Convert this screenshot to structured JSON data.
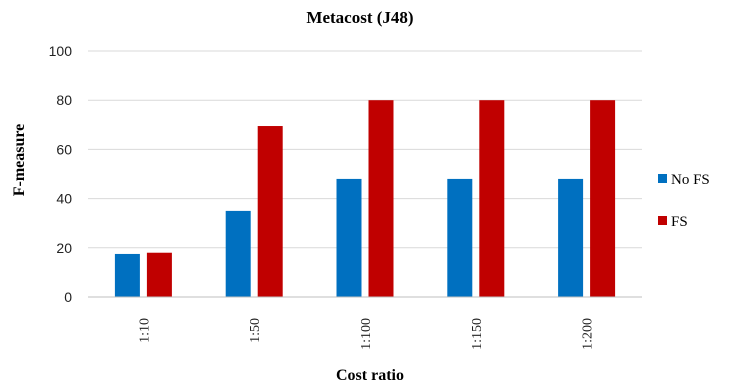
{
  "chart_data": {
    "type": "bar",
    "title": "Metacost (J48)",
    "xlabel": "Cost ratio",
    "ylabel": "F-measure",
    "categories": [
      "1:10",
      "1:50",
      "1:100",
      "1:150",
      "1:200"
    ],
    "series": [
      {
        "name": "No FS",
        "color": "#0070C0",
        "values": [
          17.5,
          35,
          48,
          48,
          48
        ]
      },
      {
        "name": "FS",
        "color": "#C00000",
        "values": [
          18,
          69.5,
          80,
          80,
          80
        ]
      }
    ],
    "ylim": [
      0,
      100
    ],
    "yticks": [
      0,
      20,
      40,
      60,
      80,
      100
    ],
    "grid": true,
    "legend_position": "right"
  }
}
